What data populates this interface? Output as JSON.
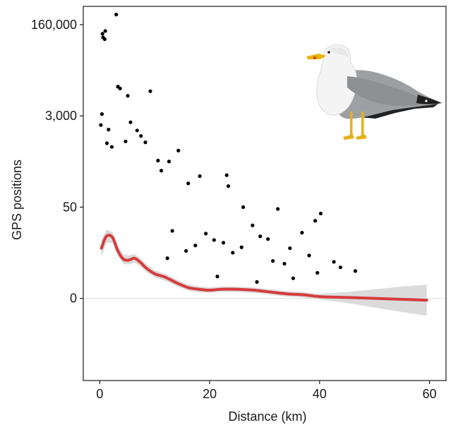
{
  "chart_data": {
    "type": "scatter",
    "title": "",
    "xlabel": "Distance (km)",
    "ylabel": "GPS positions",
    "xlim": [
      -3,
      63
    ],
    "ylim": [
      -0.9,
      3.2
    ],
    "y_scale": "pseudo-log; tick labels 0, 50, 3,000, 160,000 are evenly spaced",
    "x_ticks": [
      0,
      20,
      40,
      60
    ],
    "y_ticks": [
      {
        "pos": 0,
        "label": "0"
      },
      {
        "pos": 1,
        "label": "50"
      },
      {
        "pos": 2,
        "label": "3,000"
      },
      {
        "pos": 3,
        "label": "160,000"
      }
    ],
    "grid": false,
    "legend": "none",
    "smooth_line": {
      "color": "#d63b3b",
      "band_color": "#cfcfcf",
      "points": [
        [
          0.3,
          0.55
        ],
        [
          1.2,
          0.68
        ],
        [
          2.3,
          0.67
        ],
        [
          3.3,
          0.52
        ],
        [
          4.3,
          0.43
        ],
        [
          5.3,
          0.42
        ],
        [
          6.3,
          0.44
        ],
        [
          7.3,
          0.4
        ],
        [
          8.5,
          0.33
        ],
        [
          10,
          0.27
        ],
        [
          12,
          0.23
        ],
        [
          14,
          0.17
        ],
        [
          16,
          0.12
        ],
        [
          18,
          0.1
        ],
        [
          20,
          0.09
        ],
        [
          22,
          0.1
        ],
        [
          25,
          0.1
        ],
        [
          28,
          0.09
        ],
        [
          31,
          0.07
        ],
        [
          34,
          0.05
        ],
        [
          37,
          0.04
        ],
        [
          40,
          0.02
        ],
        [
          45,
          0.01
        ],
        [
          50,
          0
        ],
        [
          55,
          -0.01
        ],
        [
          59.5,
          -0.02
        ]
      ],
      "band": [
        [
          0.3,
          0.09
        ],
        [
          2,
          0.06
        ],
        [
          5,
          0.05
        ],
        [
          10,
          0.04
        ],
        [
          20,
          0.03
        ],
        [
          30,
          0.03
        ],
        [
          40,
          0.03
        ],
        [
          45,
          0.06
        ],
        [
          50,
          0.1
        ],
        [
          55,
          0.14
        ],
        [
          59.5,
          0.17
        ]
      ]
    },
    "points": [
      [
        0.5,
        2.9
      ],
      [
        0.6,
        2.86
      ],
      [
        1,
        2.93
      ],
      [
        0.9,
        2.84
      ],
      [
        3,
        3.11
      ],
      [
        3.3,
        2.32
      ],
      [
        3.7,
        2.3
      ],
      [
        5.1,
        2.22
      ],
      [
        9.2,
        2.27
      ],
      [
        0.2,
        1.9
      ],
      [
        0.4,
        2.02
      ],
      [
        1.6,
        1.85
      ],
      [
        1.3,
        1.7
      ],
      [
        2.2,
        1.66
      ],
      [
        4.7,
        1.72
      ],
      [
        5.6,
        1.93
      ],
      [
        6.8,
        1.84
      ],
      [
        7.5,
        1.78
      ],
      [
        8.3,
        1.71
      ],
      [
        10.6,
        1.51
      ],
      [
        11.2,
        1.4
      ],
      [
        12.6,
        1.5
      ],
      [
        14.3,
        1.62
      ],
      [
        16.1,
        1.26
      ],
      [
        18.2,
        1.34
      ],
      [
        23.1,
        1.35
      ],
      [
        23.4,
        1.23
      ],
      [
        26.1,
        1.0
      ],
      [
        27.8,
        0.8
      ],
      [
        29.2,
        0.68
      ],
      [
        30.6,
        0.65
      ],
      [
        32.4,
        0.98
      ],
      [
        34.6,
        0.55
      ],
      [
        36.8,
        0.72
      ],
      [
        39.2,
        0.85
      ],
      [
        40.2,
        0.93
      ],
      [
        39.6,
        0.28
      ],
      [
        42.6,
        0.4
      ],
      [
        43.8,
        0.34
      ],
      [
        38.1,
        0.47
      ],
      [
        33.6,
        0.38
      ],
      [
        31.5,
        0.41
      ],
      [
        20.8,
        0.64
      ],
      [
        22.5,
        0.61
      ],
      [
        24.2,
        0.5
      ],
      [
        25.8,
        0.56
      ],
      [
        19.3,
        0.71
      ],
      [
        17.4,
        0.58
      ],
      [
        15.7,
        0.52
      ],
      [
        13.2,
        0.74
      ],
      [
        12.3,
        0.44
      ],
      [
        21.4,
        0.24
      ],
      [
        28.6,
        0.18
      ],
      [
        35.2,
        0.22
      ],
      [
        46.5,
        0.3
      ]
    ],
    "annotations": []
  }
}
